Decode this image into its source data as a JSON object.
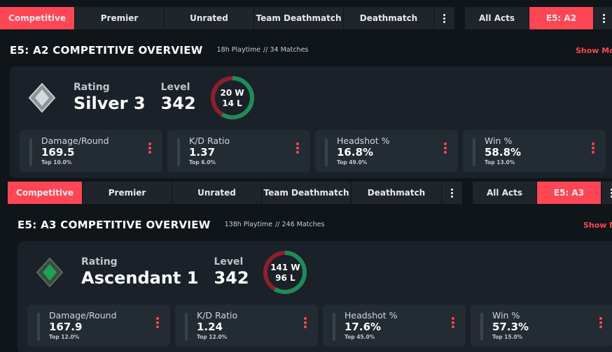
{
  "panels": [
    {
      "tabs": [
        "Competitive",
        "Premier",
        "Unrated",
        "Team Deathmatch",
        "Deathmatch"
      ],
      "acts": [
        "All Acts",
        "E5: A2"
      ],
      "title": "E5: A2 COMPETITIVE OVERVIEW",
      "playtime": "18h Playtime",
      "matches": "// 34 Matches",
      "show_more": "Show More",
      "rating_label": "Rating",
      "rank": "Silver 3",
      "level_label": "Level",
      "level": "342",
      "wins": "20 W",
      "losses": "14 L",
      "stats": [
        {
          "name": "Damage/Round",
          "value": "169.5",
          "top": "Top 10.0%"
        },
        {
          "name": "K/D Ratio",
          "value": "1.37",
          "top": "Top 6.0%"
        },
        {
          "name": "Headshot %",
          "value": "16.8%",
          "top": "Top 49.0%"
        },
        {
          "name": "Win %",
          "value": "58.8%",
          "top": "Top 13.0%"
        }
      ]
    },
    {
      "tabs": [
        "Competitive",
        "Premier",
        "Unrated",
        "Team Deathmatch",
        "Deathmatch"
      ],
      "acts": [
        "All Acts",
        "E5: A3"
      ],
      "title": "E5: A3 COMPETITIVE OVERVIEW",
      "playtime": "138h Playtime",
      "matches": "// 246 Matches",
      "show_more": "Show More",
      "rating_label": "Rating",
      "rank": "Ascendant 1",
      "level_label": "Level",
      "level": "342",
      "wins": "141 W",
      "losses": "96 L",
      "stats": [
        {
          "name": "Damage/Round",
          "value": "167.9",
          "top": "Top 12.0%"
        },
        {
          "name": "K/D Ratio",
          "value": "1.24",
          "top": "Top 12.0%"
        },
        {
          "name": "Headshot %",
          "value": "17.6%",
          "top": "Top 45.0%"
        },
        {
          "name": "Win %",
          "value": "57.3%",
          "top": "Top 15.0%"
        }
      ]
    }
  ]
}
